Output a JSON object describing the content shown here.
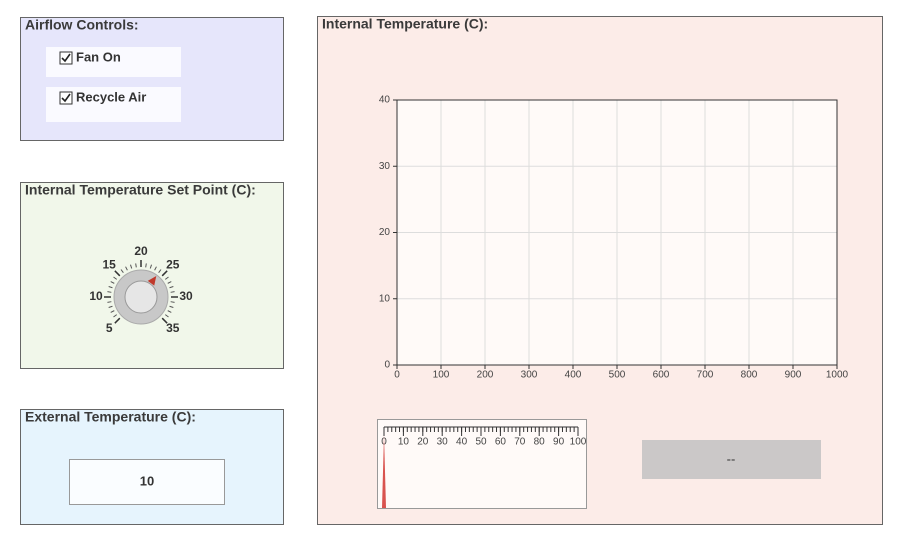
{
  "airflow_panel": {
    "title": "Airflow Controls:",
    "options": [
      {
        "label": "Fan On",
        "checked": true
      },
      {
        "label": "Recycle Air",
        "checked": true
      }
    ]
  },
  "setpoint_panel": {
    "title": "Internal Temperature Set Point (C):",
    "dial": {
      "labels": [
        5,
        10,
        15,
        20,
        25,
        30,
        35
      ],
      "value": 24
    }
  },
  "external_panel": {
    "title": "External Temperature (C):",
    "value": 10
  },
  "internal_panel": {
    "title": "Internal Temperature (C):",
    "chart": {
      "xlim": [
        0,
        1000
      ],
      "xticks": [
        0,
        100,
        200,
        300,
        400,
        500,
        600,
        700,
        800,
        900,
        1000
      ],
      "ylim": [
        0,
        40
      ],
      "yticks": [
        0,
        10,
        20,
        30,
        40
      ],
      "grid": true
    },
    "gauge": {
      "lim": [
        0,
        100
      ],
      "ticks": [
        0,
        10,
        20,
        30,
        40,
        50,
        60,
        70,
        80,
        90,
        100
      ],
      "value": 0
    },
    "display": "--"
  }
}
